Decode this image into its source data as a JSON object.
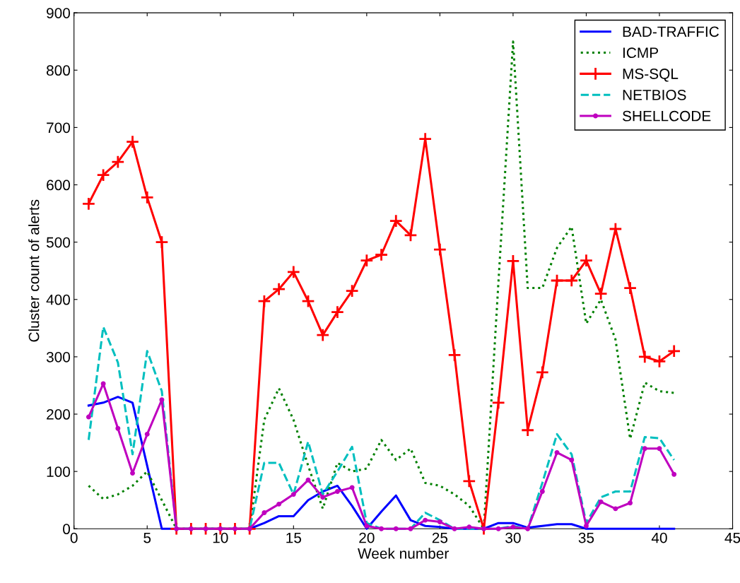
{
  "chart_data": {
    "type": "line",
    "xlabel": "Week number",
    "ylabel": "Cluster count of alerts",
    "x": [
      1,
      2,
      3,
      4,
      5,
      6,
      7,
      8,
      9,
      10,
      11,
      12,
      13,
      14,
      15,
      16,
      17,
      18,
      19,
      20,
      21,
      22,
      23,
      24,
      25,
      26,
      27,
      28,
      29,
      30,
      31,
      32,
      33,
      34,
      35,
      36,
      37,
      38,
      39,
      40,
      41
    ],
    "xlim": [
      0,
      45
    ],
    "xticks": [
      0,
      5,
      10,
      15,
      20,
      25,
      30,
      35,
      40,
      45
    ],
    "ylim": [
      0,
      900
    ],
    "yticks": [
      0,
      100,
      200,
      300,
      400,
      500,
      600,
      700,
      800,
      900
    ],
    "grid": false,
    "legend": "top right",
    "series": [
      {
        "name": "BAD-TRAFFIC",
        "color": "#0000ff",
        "line_style": "solid",
        "marker": "none",
        "values": [
          215,
          220,
          230,
          220,
          110,
          0,
          0,
          0,
          0,
          0,
          0,
          0,
          10,
          22,
          22,
          50,
          65,
          75,
          40,
          0,
          30,
          58,
          15,
          5,
          3,
          0,
          0,
          0,
          10,
          10,
          2,
          5,
          8,
          8,
          0,
          0,
          0,
          0,
          0,
          0,
          0
        ]
      },
      {
        "name": "ICMP",
        "color": "#008000",
        "line_style": "dotted",
        "marker": "none",
        "values": [
          75,
          52,
          60,
          75,
          100,
          50,
          0,
          0,
          0,
          0,
          0,
          0,
          190,
          245,
          190,
          110,
          35,
          115,
          100,
          105,
          155,
          120,
          140,
          80,
          75,
          60,
          40,
          0,
          430,
          850,
          420,
          420,
          490,
          527,
          358,
          400,
          330,
          157,
          255,
          240,
          237
        ]
      },
      {
        "name": "MS-SQL",
        "color": "#ff0000",
        "line_style": "solid",
        "marker": "cross",
        "values": [
          567,
          617,
          640,
          675,
          578,
          500,
          0,
          0,
          0,
          0,
          0,
          0,
          397,
          418,
          448,
          397,
          338,
          378,
          415,
          468,
          478,
          537,
          512,
          680,
          487,
          303,
          83,
          0,
          220,
          467,
          172,
          273,
          433,
          433,
          468,
          410,
          523,
          420,
          300,
          292,
          310
        ]
      },
      {
        "name": "NETBIOS",
        "color": "#00bfbf",
        "line_style": "dashed",
        "marker": "none",
        "values": [
          155,
          352,
          290,
          130,
          310,
          240,
          0,
          0,
          0,
          0,
          0,
          0,
          115,
          115,
          60,
          152,
          60,
          100,
          143,
          10,
          0,
          0,
          0,
          28,
          15,
          0,
          0,
          0,
          0,
          5,
          0,
          80,
          165,
          130,
          10,
          55,
          65,
          65,
          160,
          158,
          120
        ]
      },
      {
        "name": "SHELLCODE",
        "color": "#bf00bf",
        "line_style": "solid",
        "marker": "circle",
        "values": [
          195,
          253,
          175,
          97,
          165,
          225,
          0,
          0,
          0,
          0,
          0,
          0,
          28,
          43,
          60,
          85,
          55,
          65,
          72,
          5,
          0,
          0,
          0,
          15,
          12,
          0,
          3,
          0,
          0,
          3,
          0,
          65,
          133,
          120,
          5,
          47,
          35,
          45,
          140,
          140,
          95
        ]
      }
    ]
  }
}
